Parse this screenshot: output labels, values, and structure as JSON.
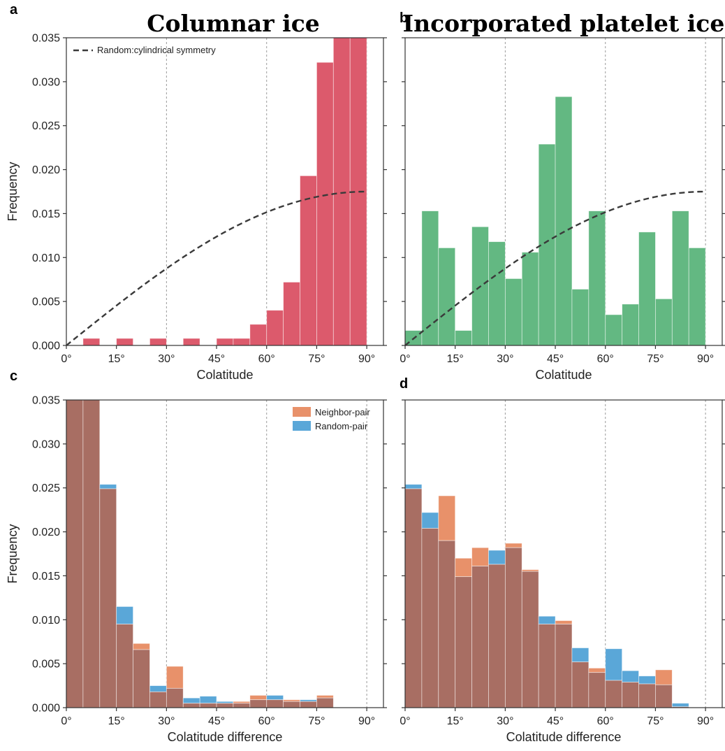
{
  "chart_data": [
    {
      "type": "bar",
      "panel_letter": "a",
      "title": "Columnar ice",
      "xlabel": "Colatitude",
      "ylabel": "Frequency",
      "xlim": [
        0,
        95
      ],
      "ylim": [
        0,
        0.035
      ],
      "bin_width": 5,
      "x_ticks": [
        0,
        15,
        30,
        45,
        60,
        75,
        90
      ],
      "x_tick_labels": [
        "0°",
        "15°",
        "30°",
        "45°",
        "60°",
        "75°",
        "90°"
      ],
      "y_ticks": [
        0,
        0.005,
        0.01,
        0.015,
        0.02,
        0.025,
        0.03,
        0.035
      ],
      "y_tick_labels": [
        "0.000",
        "0.005",
        "0.010",
        "0.015",
        "0.020",
        "0.025",
        "0.030",
        "0.035"
      ],
      "show_y_labels": true,
      "vlines": [
        30,
        60,
        90
      ],
      "series": [
        {
          "color": "#dc5a6c",
          "bin_starts": [
            5,
            15,
            25,
            35,
            45,
            50,
            55,
            60,
            65,
            70,
            75,
            80,
            85
          ],
          "values": [
            0.0008,
            0.0008,
            0.0008,
            0.0008,
            0.0008,
            0.0008,
            0.0024,
            0.004,
            0.0072,
            0.0193,
            0.0322,
            0.035,
            0.035
          ]
        }
      ],
      "reference_curve": {
        "name": "Random:cylindrical symmetry",
        "function": "sin",
        "amplitude": 0.0175,
        "x_range": [
          0,
          90
        ]
      },
      "legend": {
        "position": "top-left",
        "entries": [
          {
            "label": "Random:cylindrical symmetry",
            "style": "dashed"
          }
        ]
      },
      "grid": false
    },
    {
      "type": "bar",
      "panel_letter": "b",
      "title": "Incorporated platelet ice",
      "xlabel": "Colatitude",
      "ylabel": "",
      "xlim": [
        0,
        95
      ],
      "ylim": [
        0,
        0.035
      ],
      "bin_width": 5,
      "x_ticks": [
        0,
        15,
        30,
        45,
        60,
        75,
        90
      ],
      "x_tick_labels": [
        "0°",
        "15°",
        "30°",
        "45°",
        "60°",
        "75°",
        "90°"
      ],
      "y_ticks": [
        0,
        0.005,
        0.01,
        0.015,
        0.02,
        0.025,
        0.03,
        0.035
      ],
      "y_tick_labels": [],
      "show_y_labels": false,
      "vlines": [
        30,
        60,
        90
      ],
      "series": [
        {
          "color": "#63b882",
          "bin_starts": [
            0,
            5,
            10,
            15,
            20,
            25,
            30,
            35,
            40,
            45,
            50,
            55,
            60,
            65,
            70,
            75,
            80,
            85
          ],
          "values": [
            0.0017,
            0.0153,
            0.0111,
            0.0017,
            0.0135,
            0.0118,
            0.0076,
            0.0106,
            0.0229,
            0.0283,
            0.0064,
            0.0153,
            0.0035,
            0.0047,
            0.0129,
            0.0053,
            0.0153,
            0.0111
          ]
        }
      ],
      "reference_curve": {
        "name": "",
        "function": "sin",
        "amplitude": 0.0175,
        "x_range": [
          0,
          90
        ]
      },
      "grid": false
    },
    {
      "type": "bar",
      "panel_letter": "c",
      "title": "",
      "xlabel": "Colatitude difference",
      "ylabel": "Frequency",
      "xlim": [
        0,
        95
      ],
      "ylim": [
        0,
        0.035
      ],
      "bin_width": 5,
      "x_ticks": [
        0,
        15,
        30,
        45,
        60,
        75,
        90
      ],
      "x_tick_labels": [
        "0°",
        "15°",
        "30°",
        "45°",
        "60°",
        "75°",
        "90°"
      ],
      "y_ticks": [
        0,
        0.005,
        0.01,
        0.015,
        0.02,
        0.025,
        0.03,
        0.035
      ],
      "y_tick_labels": [
        "0.000",
        "0.005",
        "0.010",
        "0.015",
        "0.020",
        "0.025",
        "0.030",
        "0.035"
      ],
      "show_y_labels": true,
      "vlines": [
        30,
        60,
        90
      ],
      "overlap_color": "#a86e63",
      "series": [
        {
          "name": "Neighbor-pair",
          "color": "#e8916a",
          "bin_starts": [
            0,
            5,
            10,
            15,
            20,
            25,
            30,
            35,
            40,
            45,
            50,
            55,
            60,
            65,
            70,
            75
          ],
          "values": [
            0.035,
            0.035,
            0.0249,
            0.0095,
            0.0073,
            0.0018,
            0.0047,
            0.0005,
            0.0005,
            0.0005,
            0.0007,
            0.0014,
            0.0009,
            0.0009,
            0.0007,
            0.0014
          ]
        },
        {
          "name": "Random-pair",
          "color": "#5aa7d8",
          "bin_starts": [
            0,
            5,
            10,
            15,
            20,
            25,
            30,
            35,
            40,
            45,
            50,
            55,
            60,
            65,
            70,
            75
          ],
          "values": [
            0.035,
            0.035,
            0.0254,
            0.0115,
            0.0066,
            0.0025,
            0.0022,
            0.0011,
            0.0013,
            0.0007,
            0.0005,
            0.0009,
            0.0014,
            0.0007,
            0.0009,
            0.0011
          ]
        }
      ],
      "legend": {
        "position": "top-right",
        "entries": [
          {
            "label": "Neighbor-pair"
          },
          {
            "label": "Random-pair"
          }
        ]
      },
      "grid": false
    },
    {
      "type": "bar",
      "panel_letter": "d",
      "title": "",
      "xlabel": "Colatitude difference",
      "ylabel": "",
      "xlim": [
        0,
        95
      ],
      "ylim": [
        0,
        0.035
      ],
      "bin_width": 5,
      "x_ticks": [
        0,
        15,
        30,
        45,
        60,
        75,
        90
      ],
      "x_tick_labels": [
        "0°",
        "15°",
        "30°",
        "45°",
        "60°",
        "75°",
        "90°"
      ],
      "y_ticks": [
        0,
        0.005,
        0.01,
        0.015,
        0.02,
        0.025,
        0.03,
        0.035
      ],
      "y_tick_labels": [],
      "show_y_labels": false,
      "vlines": [
        30,
        60,
        90
      ],
      "overlap_color": "#a86e63",
      "series": [
        {
          "name": "Neighbor-pair",
          "color": "#e8916a",
          "bin_starts": [
            0,
            5,
            10,
            15,
            20,
            25,
            30,
            35,
            40,
            45,
            50,
            55,
            60,
            65,
            70,
            75,
            80
          ],
          "values": [
            0.0249,
            0.0204,
            0.0241,
            0.017,
            0.0182,
            0.0163,
            0.0187,
            0.0157,
            0.0095,
            0.0099,
            0.0052,
            0.0045,
            0.0031,
            0.0029,
            0.0027,
            0.0043,
            0.0001
          ]
        },
        {
          "name": "Random-pair",
          "color": "#5aa7d8",
          "bin_starts": [
            0,
            5,
            10,
            15,
            20,
            25,
            30,
            35,
            40,
            45,
            50,
            55,
            60,
            65,
            70,
            75,
            80
          ],
          "values": [
            0.0254,
            0.0222,
            0.019,
            0.0149,
            0.0161,
            0.0179,
            0.0182,
            0.0155,
            0.0104,
            0.0095,
            0.0068,
            0.004,
            0.0067,
            0.0042,
            0.0036,
            0.0026,
            0.0005
          ]
        }
      ],
      "grid": false
    }
  ]
}
